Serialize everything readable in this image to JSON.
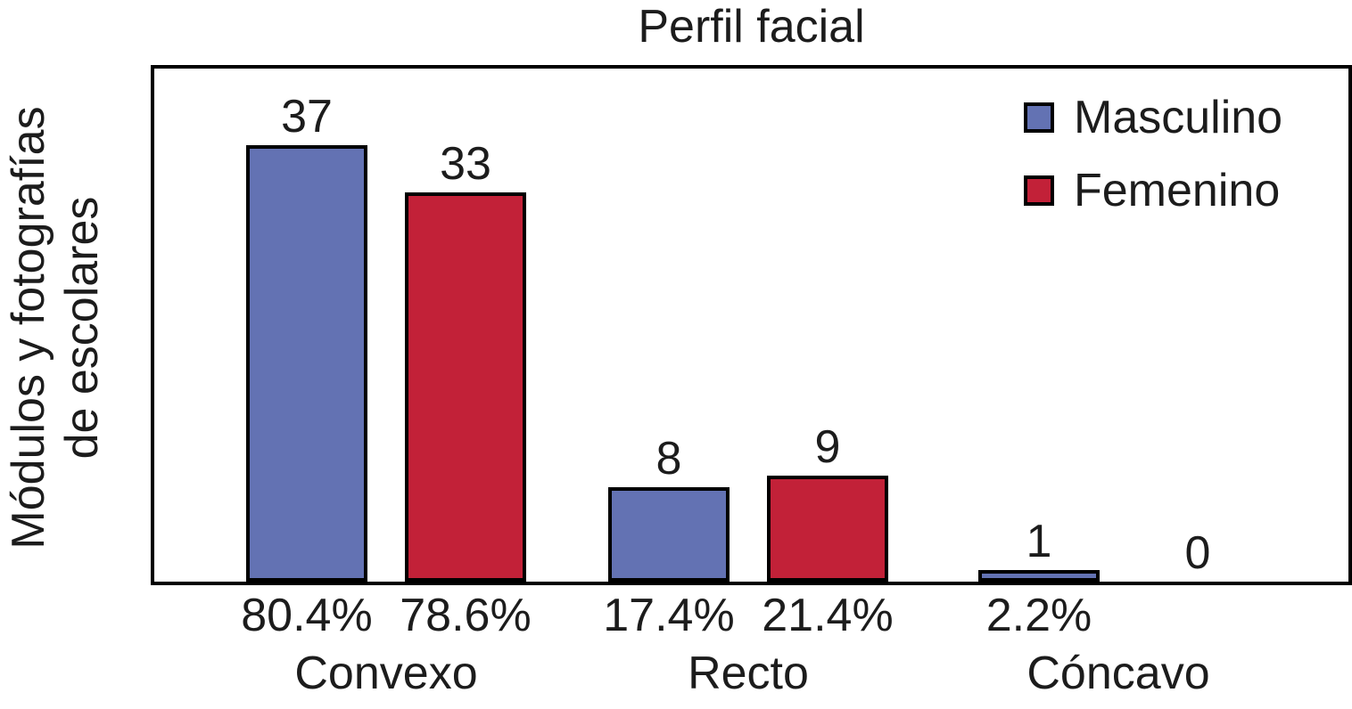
{
  "chart_data": {
    "type": "bar",
    "title": "Perfil facial",
    "ylabel": "Módulos y fotografías de escolares",
    "ylabel_lines": [
      "Módulos y fotografías",
      "de escolares"
    ],
    "xlabel": "",
    "categories": [
      "Convexo",
      "Recto",
      "Cóncavo"
    ],
    "series": [
      {
        "name": "Masculino",
        "color": "#6372B3",
        "values": [
          37,
          8,
          1
        ],
        "percent_labels": [
          "80.4%",
          "17.4%",
          "2.2%"
        ]
      },
      {
        "name": "Femenino",
        "color": "#C22138",
        "values": [
          33,
          9,
          0
        ],
        "percent_labels": [
          "78.6%",
          "21.4%",
          ""
        ]
      }
    ],
    "ylim": [
      0,
      43.5
    ],
    "grid": false,
    "legend_position": "top-right",
    "value_labels_shown": true,
    "bar_border_color": "#000000",
    "frame_color": "#000000",
    "text_color": "#1c1c1c"
  }
}
